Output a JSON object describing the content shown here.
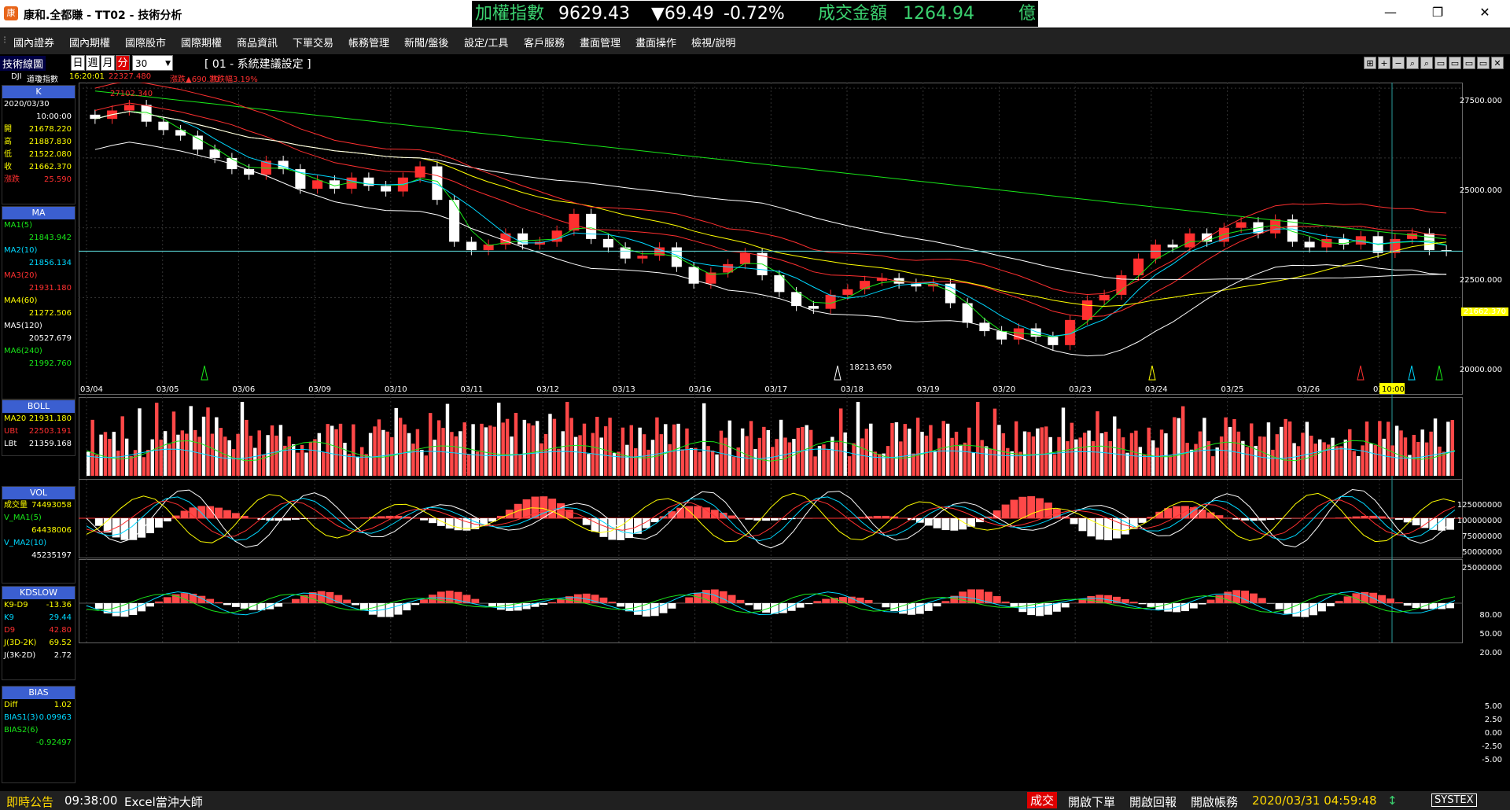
{
  "window": {
    "title": "康和.全都賺 - TT02 - 技術分析",
    "icon_label": "康"
  },
  "ticker": {
    "index_name": "加權指數",
    "index_value": "9629.43",
    "change": "▼69.49",
    "change_pct": "-0.72%",
    "turnover_label": "成交金額",
    "turnover_value": "1264.94",
    "unit": "億"
  },
  "window_controls": {
    "minimize": "—",
    "restore": "❐",
    "close": "✕"
  },
  "menu": [
    "國內證券",
    "國內期權",
    "國際股市",
    "國際期權",
    "商品資訊",
    "下單交易",
    "帳務管理",
    "新聞/盤後",
    "設定/工具",
    "客戶服務",
    "畫面管理",
    "畫面操作",
    "檢視/說明"
  ],
  "toolbar": {
    "panel_label": "技術線圖",
    "periods": [
      {
        "label": "日",
        "active": false
      },
      {
        "label": "週",
        "active": false
      },
      {
        "label": "月",
        "active": false
      },
      {
        "label": "分",
        "active": true
      }
    ],
    "interval": "30",
    "settings_title": "[ 01 - 系統建議設定 ]",
    "icons": [
      "⊞",
      "+",
      "−",
      "⌕",
      "⌕",
      "▭",
      "▭",
      "▭",
      "▭",
      "✕"
    ]
  },
  "symbol_info": {
    "code": "DJI",
    "name": "道瓊指數",
    "time": "16:20:01",
    "price": "22327.480",
    "change_label": "漲跌▲690.70",
    "change_pct_label": "漲跌幅3.19%"
  },
  "k_panel": {
    "title": "K",
    "date": "2020/03/30",
    "time": "10:00:00",
    "rows": [
      {
        "k": "開",
        "v": "21678.220"
      },
      {
        "k": "高",
        "v": "21887.830"
      },
      {
        "k": "低",
        "v": "21522.080"
      },
      {
        "k": "收",
        "v": "21662.370"
      },
      {
        "k": "漲跌",
        "v": "25.590"
      }
    ]
  },
  "ma_panel": {
    "title": "MA",
    "rows": [
      {
        "k": "MA1(5)",
        "v": "21843.942",
        "color": "#19e619"
      },
      {
        "k": "MA2(10)",
        "v": "21856.134",
        "color": "#00d8ff"
      },
      {
        "k": "MA3(20)",
        "v": "21931.180",
        "color": "#ff3030"
      },
      {
        "k": "MA4(60)",
        "v": "21272.506",
        "color": "#ffff00"
      },
      {
        "k": "MA5(120)",
        "v": "20527.679",
        "color": "#ffffff"
      },
      {
        "k": "MA6(240)",
        "v": "21992.760",
        "color": "#19e619"
      }
    ]
  },
  "boll_panel": {
    "title": "BOLL",
    "rows": [
      {
        "k": "MA20",
        "v": "21931.180",
        "color": "#ffff00"
      },
      {
        "k": "UBt",
        "v": "22503.191",
        "color": "#ff3030"
      },
      {
        "k": "LBt",
        "v": "21359.168",
        "color": "#ffffff"
      }
    ]
  },
  "vol_panel": {
    "title": "VOL",
    "rows": [
      {
        "k": "成交量",
        "v": "74493058"
      },
      {
        "k": "V_MA1(5)",
        "v": ""
      },
      {
        "k": "",
        "v": "64438006"
      },
      {
        "k": "V_MA2(10)",
        "v": ""
      },
      {
        "k": "",
        "v": "45235197"
      }
    ]
  },
  "kd_panel": {
    "title": "KDSLOW",
    "rows": [
      {
        "k": "K9-D9",
        "v": "-13.36"
      },
      {
        "k": "K9",
        "v": "29.44"
      },
      {
        "k": "D9",
        "v": "42.80"
      },
      {
        "k": "J(3D-2K)",
        "v": "69.52"
      },
      {
        "k": "J(3K-2D)",
        "v": "2.72"
      }
    ]
  },
  "bias_panel": {
    "title": "BIAS",
    "rows": [
      {
        "k": "Diff",
        "v": "1.02"
      },
      {
        "k": "BIAS1(3)",
        "v": "0.09963"
      },
      {
        "k": "BIAS2(6)",
        "v": ""
      },
      {
        "k": "",
        "v": "-0.92497"
      }
    ]
  },
  "chart_data": [
    {
      "type": "candlestick",
      "name": "K",
      "dates": [
        "03/04",
        "03/05",
        "03/06",
        "03/09",
        "03/10",
        "03/11",
        "03/12",
        "03/13",
        "03/16",
        "03/17",
        "03/18",
        "03/19",
        "03/20",
        "03/23",
        "03/24",
        "03/25",
        "03/26",
        "03/27"
      ],
      "cursor_label": "10:00",
      "y_ticks": [
        "27500.000",
        "25000.000",
        "22500.000",
        "20000.000"
      ],
      "ylim": [
        17000,
        27700
      ],
      "last_price": "21662.370",
      "high_label": "27102.340",
      "low_label": "18213.650",
      "close_path": [
        26400,
        26700,
        26900,
        26300,
        26000,
        25800,
        25300,
        25000,
        24600,
        24400,
        24900,
        24600,
        23900,
        24200,
        23900,
        24300,
        24000,
        23800,
        24300,
        24700,
        23500,
        22000,
        21700,
        21900,
        22300,
        21900,
        22000,
        22400,
        23000,
        22100,
        21800,
        21400,
        21500,
        21800,
        21100,
        20500,
        20900,
        21200,
        21600,
        20800,
        20200,
        19700,
        19600,
        20100,
        20300,
        20600,
        20700,
        20500,
        20400,
        20500,
        19800,
        19100,
        18800,
        18500,
        18900,
        18600,
        18300,
        19200,
        19900,
        20100,
        20800,
        21400,
        21900,
        21800,
        22300,
        22000,
        22500,
        22700,
        22300,
        22800,
        22000,
        21800,
        22100,
        21900,
        22200,
        21600,
        22100,
        22300,
        21700,
        21662
      ]
    },
    {
      "type": "bar",
      "name": "VOL",
      "y_ticks": [
        "125000000",
        "100000000",
        "75000000",
        "50000000",
        "25000000"
      ]
    },
    {
      "type": "line",
      "name": "KDSLOW",
      "y_ticks": [
        "80.00",
        "50.00",
        "20.00"
      ]
    },
    {
      "type": "line",
      "name": "BIAS",
      "y_ticks": [
        "5.00",
        "2.50",
        "0.00",
        "-2.50",
        "-5.00"
      ]
    }
  ],
  "statusbar": {
    "announce": "即時公告",
    "time": "09:38:00",
    "news": "Excel當沖大師",
    "trade": "成交",
    "order_btn": "開啟下單",
    "report_btn": "開啟回報",
    "account_btn": "開啟帳務",
    "datetime": "2020/03/31 04:59:48",
    "brand": "SYSTEX"
  }
}
